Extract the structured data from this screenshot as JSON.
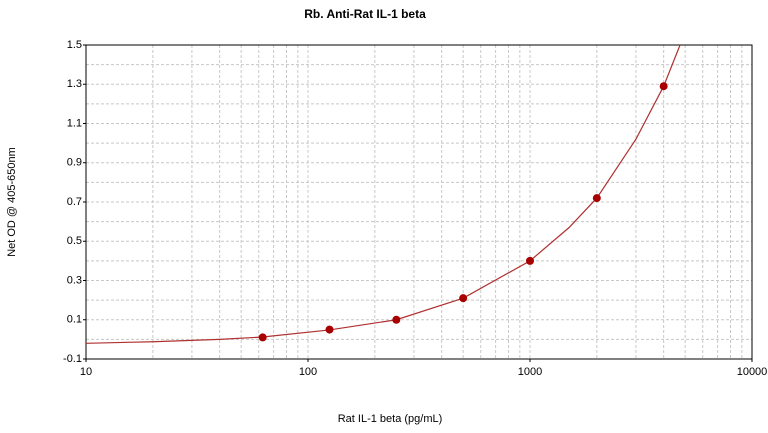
{
  "chart_data": {
    "type": "scatter",
    "title": "Rb. Anti-Rat IL-1 beta",
    "x_label": "Rat IL-1 beta (pg/mL)",
    "y_label": "Net OD @ 405-650nm",
    "x": [
      62.5,
      125,
      250,
      500,
      1000,
      2000,
      4000
    ],
    "values": [
      0.01,
      0.05,
      0.1,
      0.21,
      0.4,
      0.72,
      1.29
    ],
    "color": "#a80000",
    "fit": {
      "x": [
        10,
        20,
        40,
        62.5,
        125,
        250,
        500,
        1000,
        1500,
        2000,
        3000,
        4000,
        4740
      ],
      "values": [
        -0.02,
        -0.012,
        0.0,
        0.012,
        0.048,
        0.1,
        0.21,
        0.4,
        0.57,
        0.72,
        1.02,
        1.29,
        1.5
      ],
      "color": "#b03030"
    },
    "xlim": [
      10,
      10000
    ],
    "xticks": [
      10,
      100,
      1000,
      10000
    ],
    "xscale": "log",
    "ylim": [
      -0.1,
      1.5
    ],
    "yticks": [
      1.5,
      1.3,
      1.1,
      0.9,
      0.7,
      0.5,
      0.3,
      0.1,
      -0.1
    ],
    "grid": true
  }
}
